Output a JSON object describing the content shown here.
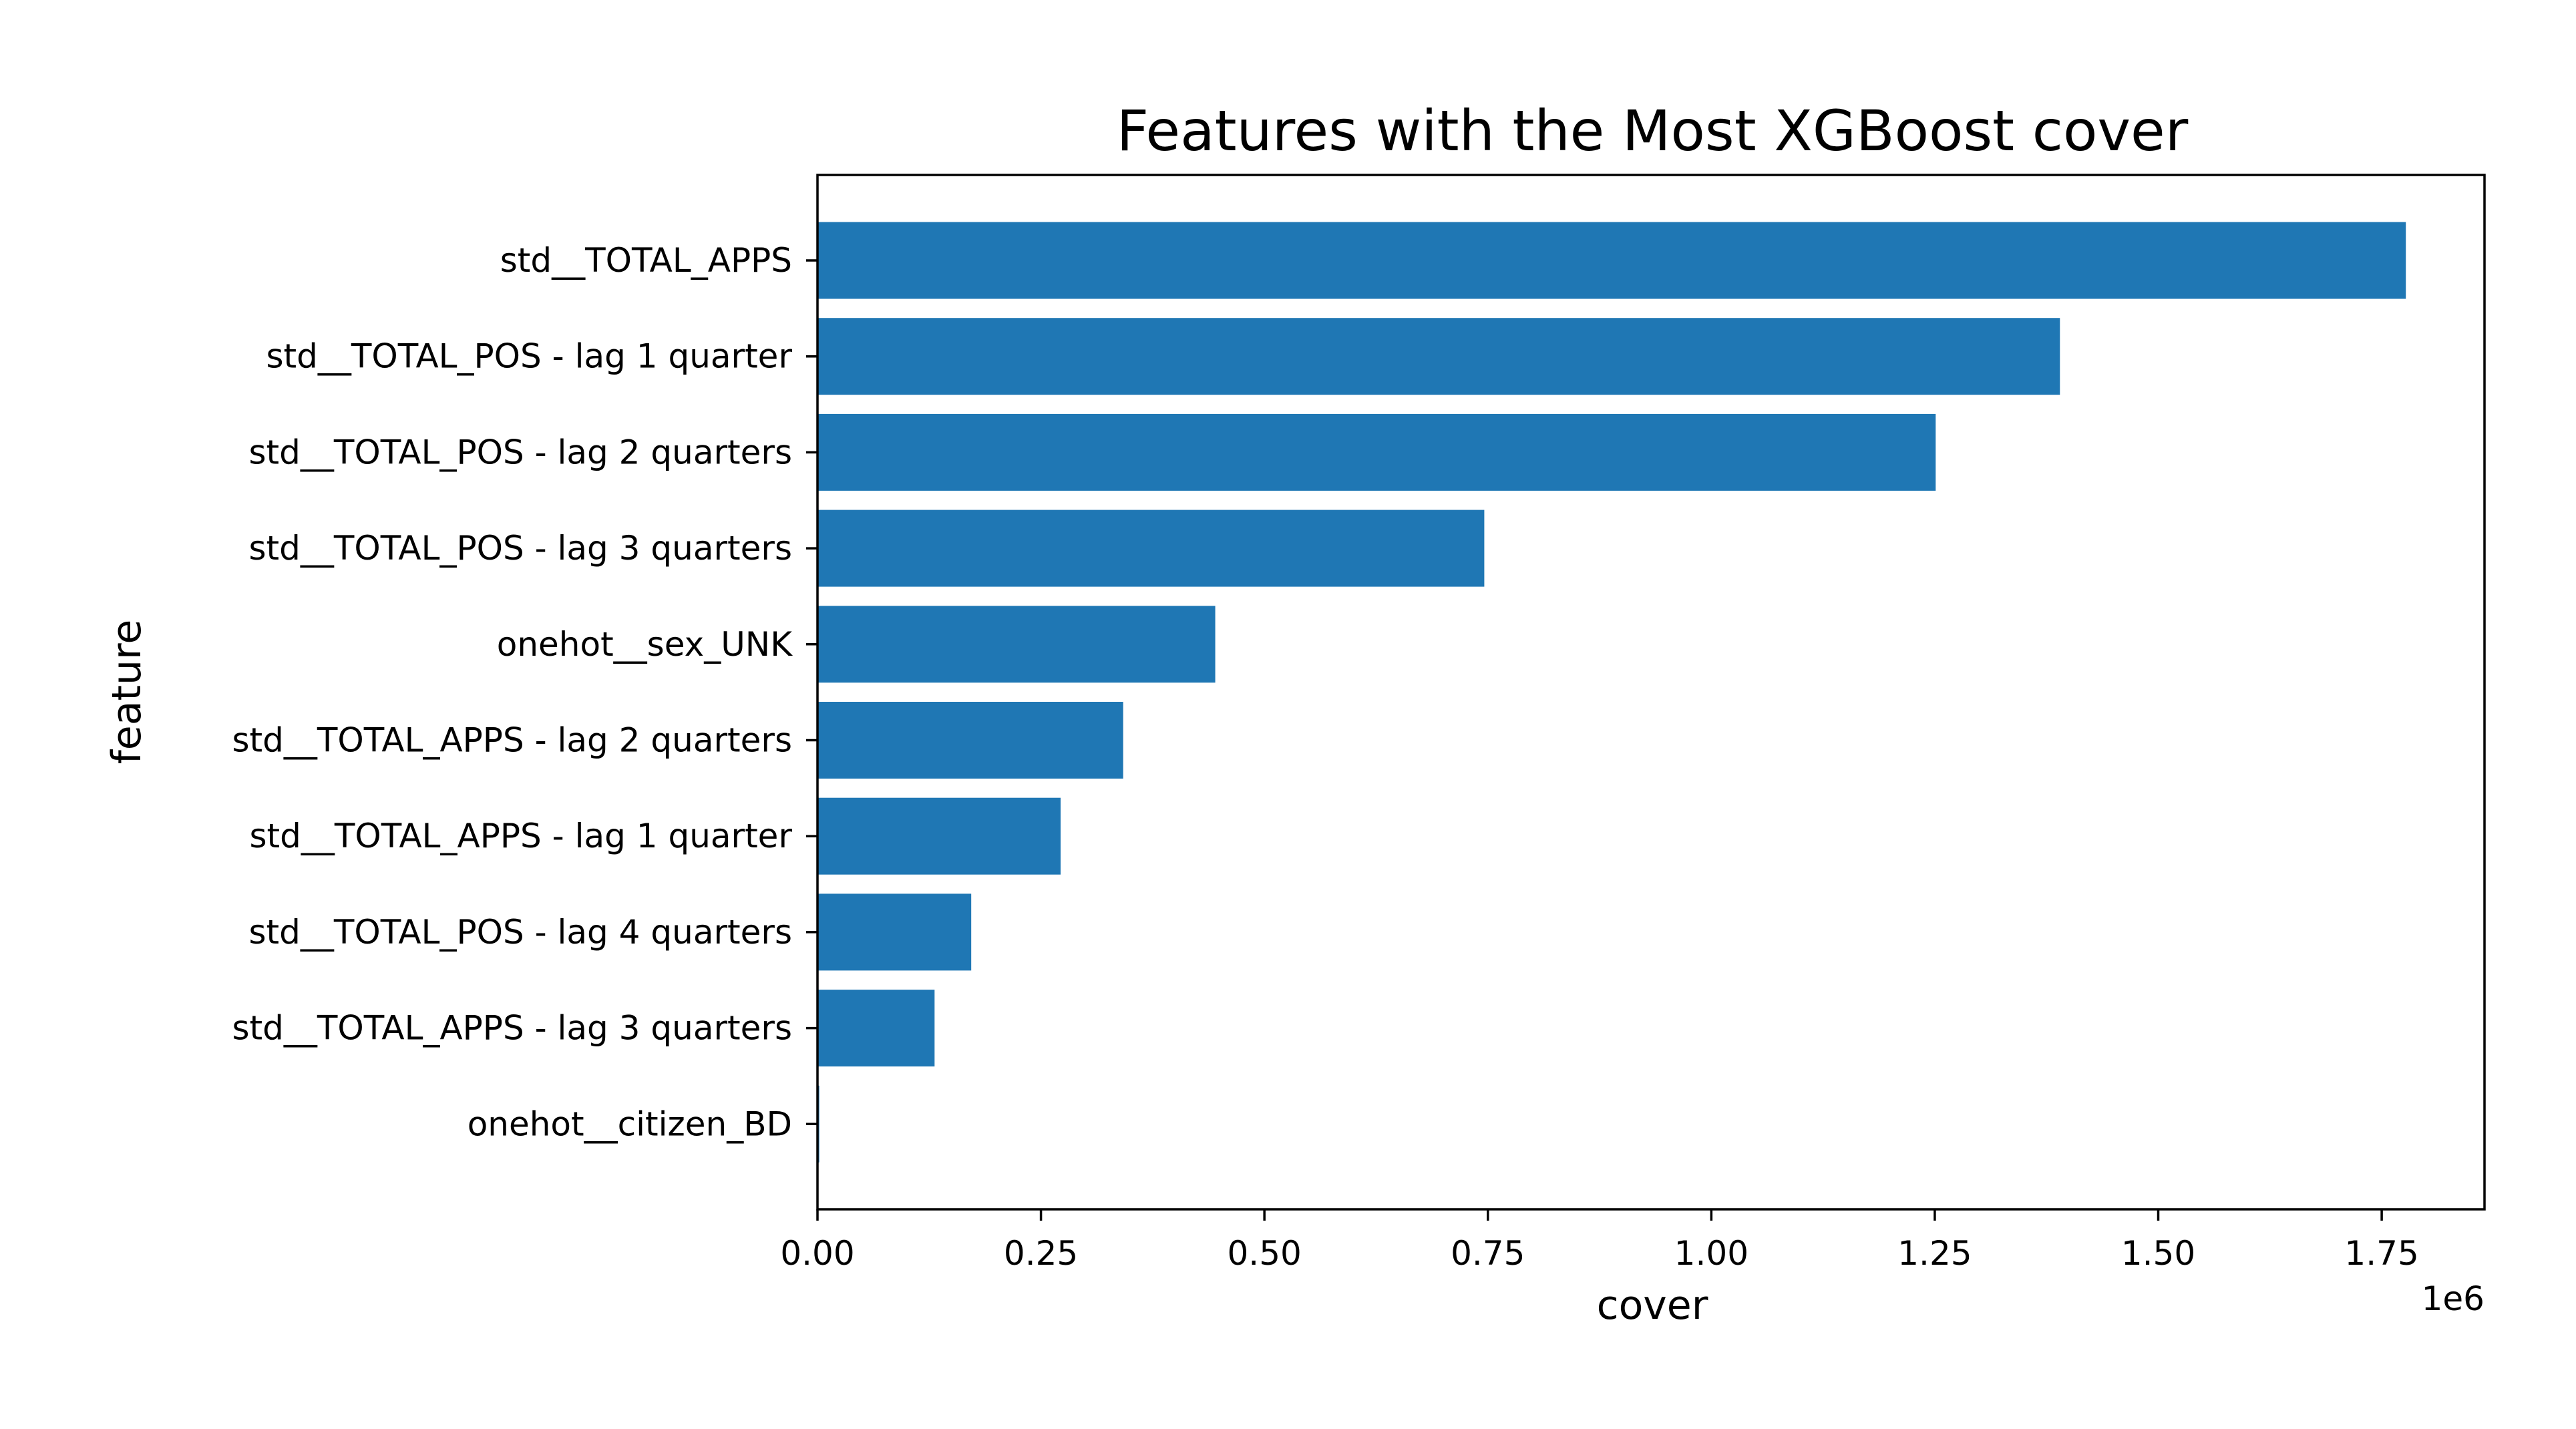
{
  "chart_data": {
    "type": "bar",
    "orientation": "horizontal",
    "title": "Features with the Most XGBoost cover",
    "xlabel": "cover",
    "ylabel": "feature",
    "x_offset_label": "1e6",
    "xlim": [
      0,
      1865000
    ],
    "x_ticks": [
      0,
      250000,
      500000,
      750000,
      1000000,
      1250000,
      1500000,
      1750000
    ],
    "x_tick_labels": [
      "0.00",
      "0.25",
      "0.50",
      "0.75",
      "1.00",
      "1.25",
      "1.50",
      "1.75"
    ],
    "categories": [
      "std__TOTAL_APPS",
      "std__TOTAL_POS - lag 1 quarter",
      "std__TOTAL_POS - lag 2 quarters",
      "std__TOTAL_POS - lag 3 quarters",
      "onehot__sex_UNK",
      "std__TOTAL_APPS - lag 2 quarters",
      "std__TOTAL_APPS - lag 1 quarter",
      "std__TOTAL_POS - lag 4 quarters",
      "std__TOTAL_APPS - lag 3 quarters",
      "onehot__citizen_BD"
    ],
    "values": [
      1777000,
      1390000,
      1251000,
      746000,
      445000,
      342000,
      272000,
      172000,
      131000,
      2000
    ],
    "bar_color": "#1f77b4",
    "grid": false,
    "legend": "none"
  }
}
